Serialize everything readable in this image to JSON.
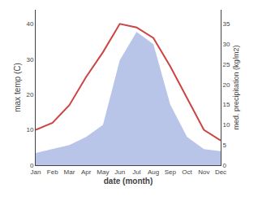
{
  "chart_data": {
    "type": "line",
    "categories": [
      "Jan",
      "Feb",
      "Mar",
      "Apr",
      "May",
      "Jun",
      "Jul",
      "Aug",
      "Sep",
      "Oct",
      "Nov",
      "Dec"
    ],
    "series": [
      {
        "type": "area",
        "axis": "y2",
        "color": "#b8c4e8",
        "values": [
          3,
          4,
          5,
          7,
          10,
          26,
          33,
          30,
          15,
          7,
          4,
          3.5
        ]
      },
      {
        "type": "line",
        "color": "#cc4444",
        "values": [
          10,
          12,
          17,
          25,
          32,
          40,
          39,
          36,
          28,
          19,
          10,
          7
        ]
      }
    ],
    "xlabel": "date (month)",
    "ylabel": "max temp (C)",
    "y2label": "med. precipitation (kg/m2)",
    "ylim": [
      0,
      44
    ],
    "yticks": [
      0,
      10,
      20,
      30,
      40
    ],
    "y2lim": [
      0,
      38.5
    ],
    "y2ticks": [
      0,
      5,
      10,
      15,
      20,
      25,
      30,
      35
    ],
    "grid": false
  }
}
